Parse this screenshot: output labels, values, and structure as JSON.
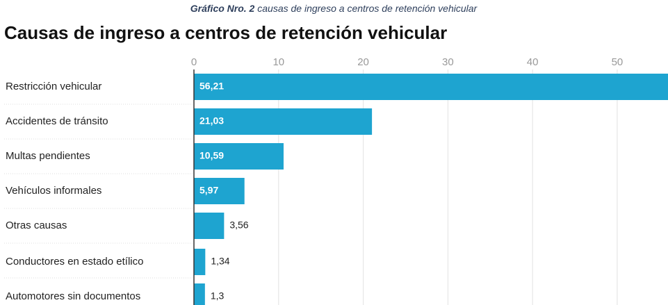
{
  "chart_data": {
    "type": "barh",
    "caption_label": "Gráfico Nro.  2",
    "caption": "causas de ingreso a centros de retención vehicular",
    "title": "Causas de ingreso a centros de retención vehicular",
    "categories": [
      "Restricción vehicular",
      "Accidentes de tránsito",
      "Multas pendientes",
      "Vehículos informales",
      "Otras causas",
      "Conductores en estado etílico",
      "Automotores sin documentos"
    ],
    "values": [
      56.21,
      21.03,
      10.59,
      5.97,
      3.56,
      1.34,
      1.3
    ],
    "value_labels": [
      "56,21",
      "21,03",
      "10,59",
      "5,97",
      "3,56",
      "1,34",
      "1,3"
    ],
    "color": "#1ea4d0",
    "xlim": [
      0,
      56
    ],
    "xticks": [
      0,
      10,
      20,
      30,
      40,
      50
    ],
    "grid": true
  }
}
